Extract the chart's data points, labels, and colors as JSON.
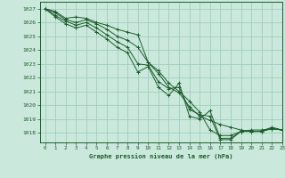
{
  "title": "Graphe pression niveau de la mer (hPa)",
  "bg_color": "#cbe8dc",
  "grid_color": "#9ecfba",
  "line_color": "#1a5c2a",
  "xlim": [
    -0.5,
    23
  ],
  "ylim": [
    1017.3,
    1027.5
  ],
  "yticks": [
    1018,
    1019,
    1020,
    1021,
    1022,
    1023,
    1024,
    1025,
    1026,
    1027
  ],
  "xticks": [
    0,
    1,
    2,
    3,
    4,
    5,
    6,
    7,
    8,
    9,
    10,
    11,
    12,
    13,
    14,
    15,
    16,
    17,
    18,
    19,
    20,
    21,
    22,
    23
  ],
  "lines": [
    [
      1027.0,
      1026.8,
      1026.3,
      1026.4,
      1026.3,
      1026.0,
      1025.8,
      1025.5,
      1025.3,
      1025.1,
      1023.1,
      1022.5,
      1021.6,
      1021.0,
      1020.3,
      1019.5,
      1018.2,
      1017.8,
      1017.8,
      1018.1,
      1018.2,
      1018.2,
      1018.3,
      1018.2
    ],
    [
      1027.0,
      1026.7,
      1026.2,
      1026.0,
      1026.2,
      1025.9,
      1025.5,
      1025.0,
      1024.7,
      1024.2,
      1023.1,
      1022.3,
      1021.3,
      1020.9,
      1019.9,
      1019.2,
      1018.9,
      1018.6,
      1018.4,
      1018.2,
      1018.1,
      1018.1,
      1018.3,
      1018.2
    ],
    [
      1027.0,
      1026.5,
      1026.1,
      1025.8,
      1026.0,
      1025.6,
      1025.1,
      1024.6,
      1024.2,
      1023.0,
      1022.9,
      1021.7,
      1021.2,
      1021.3,
      1019.7,
      1019.3,
      1019.2,
      1017.5,
      1017.5,
      1018.1,
      1018.1,
      1018.1,
      1018.3,
      1018.2
    ],
    [
      1027.0,
      1026.4,
      1025.9,
      1025.6,
      1025.8,
      1025.3,
      1024.8,
      1024.2,
      1023.8,
      1022.4,
      1022.8,
      1021.3,
      1020.7,
      1021.6,
      1019.2,
      1019.0,
      1019.6,
      1017.6,
      1017.6,
      1018.1,
      1018.1,
      1018.1,
      1018.4,
      1018.2
    ]
  ]
}
